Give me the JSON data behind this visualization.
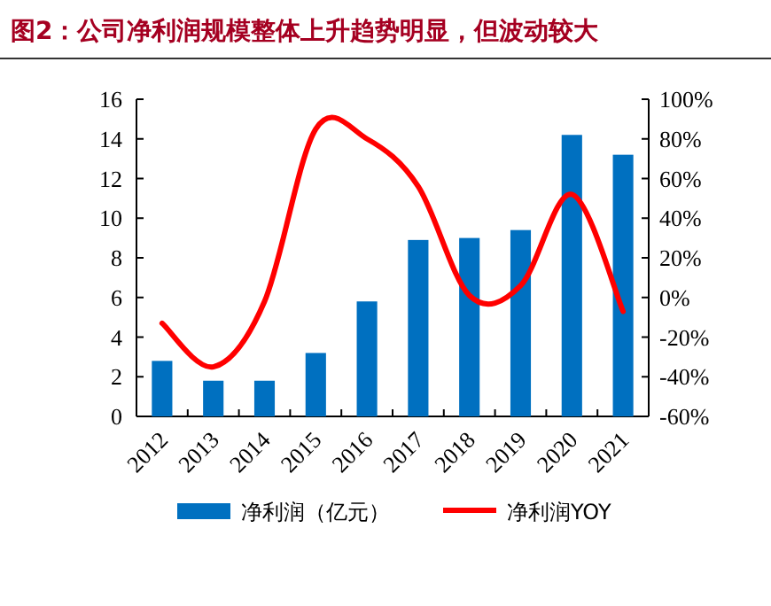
{
  "chart_data": {
    "type": "bar",
    "title": "图2：公司净利润规模整体上升趋势明显，但波动较大",
    "categories": [
      "2012",
      "2013",
      "2014",
      "2015",
      "2016",
      "2017",
      "2018",
      "2019",
      "2020",
      "2021"
    ],
    "series": [
      {
        "name": "净利润（亿元）",
        "color": "#0070c0",
        "values": [
          2.8,
          1.8,
          1.8,
          3.2,
          5.8,
          8.9,
          9.0,
          9.4,
          14.2,
          13.2
        ]
      },
      {
        "name": "净利润YOY",
        "type": "line",
        "axis": "y2",
        "color": "#ff0000",
        "values": [
          -13,
          -35,
          -2,
          85,
          80,
          56,
          1,
          6,
          52,
          -7
        ]
      }
    ],
    "ylim": [
      0,
      16
    ],
    "yticks": [
      0,
      2,
      4,
      6,
      8,
      10,
      12,
      14,
      16
    ],
    "y2lim": [
      -60,
      100
    ],
    "y2ticks": [
      {
        "value": -60,
        "label": "-60%"
      },
      {
        "value": -40,
        "label": "-40%"
      },
      {
        "value": -20,
        "label": "-20%"
      },
      {
        "value": 0,
        "label": "0%"
      },
      {
        "value": 20,
        "label": "20%"
      },
      {
        "value": 40,
        "label": "40%"
      },
      {
        "value": 60,
        "label": "60%"
      },
      {
        "value": 80,
        "label": "80%"
      },
      {
        "value": 100,
        "label": "100%"
      }
    ],
    "grid": false,
    "legend": "bottom"
  }
}
